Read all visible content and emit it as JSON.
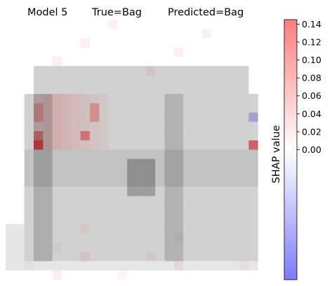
{
  "chart_data": {
    "type": "heatmap",
    "title": {
      "model": "Model 5",
      "true_label": "True=Bag",
      "predicted_label": "Predicted=Bag"
    },
    "grid": {
      "rows": 28,
      "cols": 28
    },
    "axes_visible": false,
    "image_description": "28x28 grayscale Fashion-MNIST image of a bag overlaid with SHAP attributions",
    "colorbar": {
      "label": "SHAP value",
      "colormap": "bwr",
      "vmin": -0.145,
      "vmax": 0.145,
      "ticks": [
        0.14,
        0.12,
        0.1,
        0.08,
        0.06,
        0.04,
        0.02,
        0.0
      ],
      "tick_labels": [
        "0.14",
        "0.12",
        "0.10",
        "0.08",
        "0.06",
        "0.04",
        "0.02",
        "0.00"
      ]
    },
    "notable_values": [
      {
        "description": "strongest positive (dark red) at left bag edge",
        "value": 0.14
      },
      {
        "description": "upper-left handle region positive",
        "value": 0.07
      },
      {
        "description": "single negative (blue) cell near right edge",
        "value": -0.07
      }
    ]
  }
}
